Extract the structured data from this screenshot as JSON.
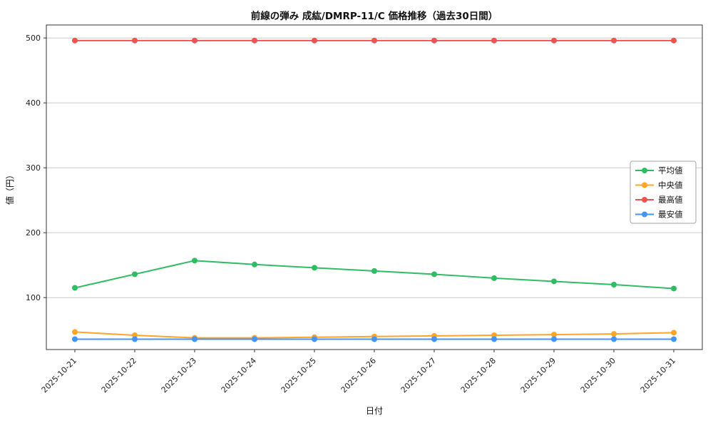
{
  "chart_data": {
    "type": "line",
    "title": "前線の弾み 成紘/DMRP-11/C 価格推移（過去30日間）",
    "xlabel": "日付",
    "ylabel": "値（円）",
    "categories": [
      "2025-10-21",
      "2025-10-22",
      "2025-10-23",
      "2025-10-24",
      "2025-10-25",
      "2025-10-26",
      "2025-10-27",
      "2025-10-28",
      "2025-10-29",
      "2025-10-30",
      "2025-10-31"
    ],
    "series": [
      {
        "name": "平均値",
        "color": "#2ebd63",
        "values": [
          115,
          136,
          157,
          151,
          146,
          141,
          136,
          130,
          125,
          120,
          114
        ]
      },
      {
        "name": "中央値",
        "color": "#ffa424",
        "values": [
          47,
          42,
          38,
          38,
          39,
          40,
          41,
          42,
          43,
          44,
          46
        ]
      },
      {
        "name": "最高値",
        "color": "#ef5350",
        "values": [
          496,
          496,
          496,
          496,
          496,
          496,
          496,
          496,
          496,
          496,
          496
        ]
      },
      {
        "name": "最安値",
        "color": "#4494f4",
        "values": [
          36,
          36,
          36,
          36,
          36,
          36,
          36,
          36,
          36,
          36,
          36
        ]
      }
    ],
    "ylim": [
      20,
      520
    ],
    "yticks": [
      100,
      200,
      300,
      400,
      500
    ],
    "grid": true,
    "gridline_color": "#cccccc",
    "legend_position": "right-middle",
    "legend_entries": [
      "平均値",
      "中央値",
      "最高値",
      "最安値"
    ]
  }
}
